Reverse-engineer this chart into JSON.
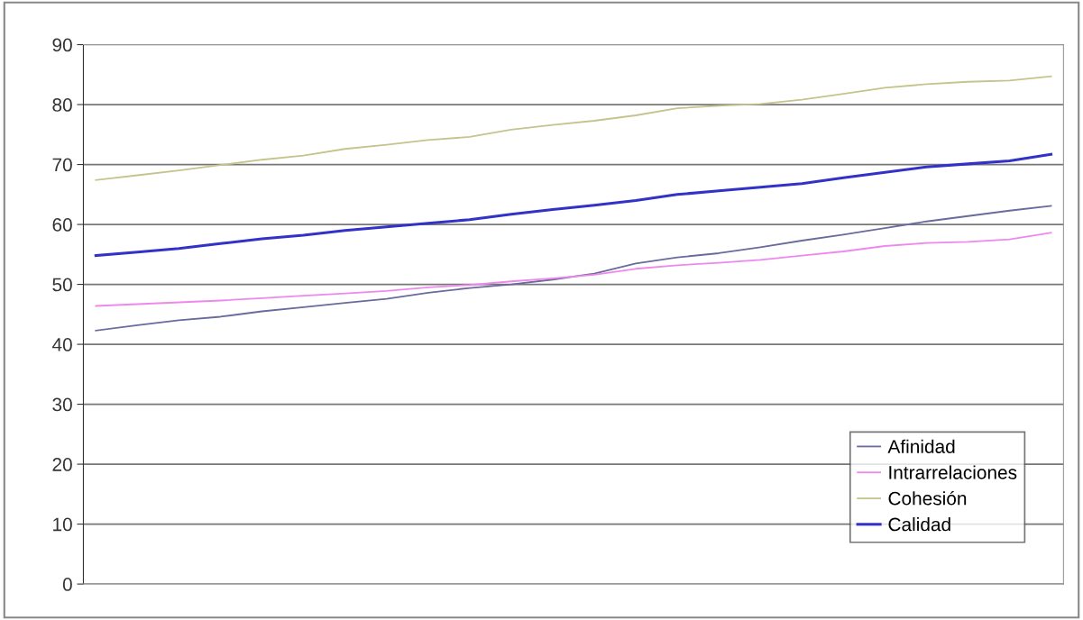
{
  "chart_data": {
    "type": "line",
    "categories": [
      null,
      null,
      null,
      null,
      null,
      null,
      null,
      null,
      null,
      null,
      null,
      null,
      null,
      null,
      null,
      null,
      null,
      null,
      null,
      null,
      null,
      null,
      null,
      null
    ],
    "series": [
      {
        "name": "Afinidad",
        "color": "#6a6a9c",
        "values": [
          42.3,
          43.2,
          44.0,
          44.6,
          45.5,
          46.2,
          46.9,
          47.6,
          48.6,
          49.4,
          50.0,
          50.8,
          51.8,
          53.5,
          54.5,
          55.2,
          56.2,
          57.3,
          58.3,
          59.4,
          60.5,
          61.4,
          62.3,
          63.1
        ]
      },
      {
        "name": "Intrarrelaciones",
        "color": "#ee88ee",
        "values": [
          46.4,
          46.7,
          47.0,
          47.3,
          47.7,
          48.1,
          48.5,
          48.9,
          49.5,
          49.9,
          50.5,
          51.0,
          51.6,
          52.6,
          53.2,
          53.6,
          54.1,
          54.8,
          55.5,
          56.4,
          56.9,
          57.1,
          57.5,
          58.6
        ]
      },
      {
        "name": "Cohesión",
        "color": "#c4c48c",
        "values": [
          67.4,
          68.2,
          69.0,
          69.9,
          70.8,
          71.5,
          72.6,
          73.3,
          74.1,
          74.6,
          75.8,
          76.6,
          77.3,
          78.2,
          79.4,
          79.8,
          80.1,
          80.8,
          81.8,
          82.8,
          83.4,
          83.8,
          84.0,
          84.7
        ]
      },
      {
        "name": "Calidad",
        "color": "#3232c8",
        "values": [
          54.8,
          55.4,
          56.0,
          56.8,
          57.6,
          58.2,
          59.0,
          59.6,
          60.2,
          60.8,
          61.7,
          62.5,
          63.2,
          64.0,
          65.0,
          65.6,
          66.2,
          66.8,
          67.8,
          68.7,
          69.6,
          70.1,
          70.6,
          71.7
        ]
      }
    ],
    "ylim": [
      0,
      90
    ],
    "yticks": [
      0,
      10,
      20,
      30,
      40,
      50,
      60,
      70,
      80,
      90
    ],
    "grid": "y",
    "legend": "bottom right"
  }
}
